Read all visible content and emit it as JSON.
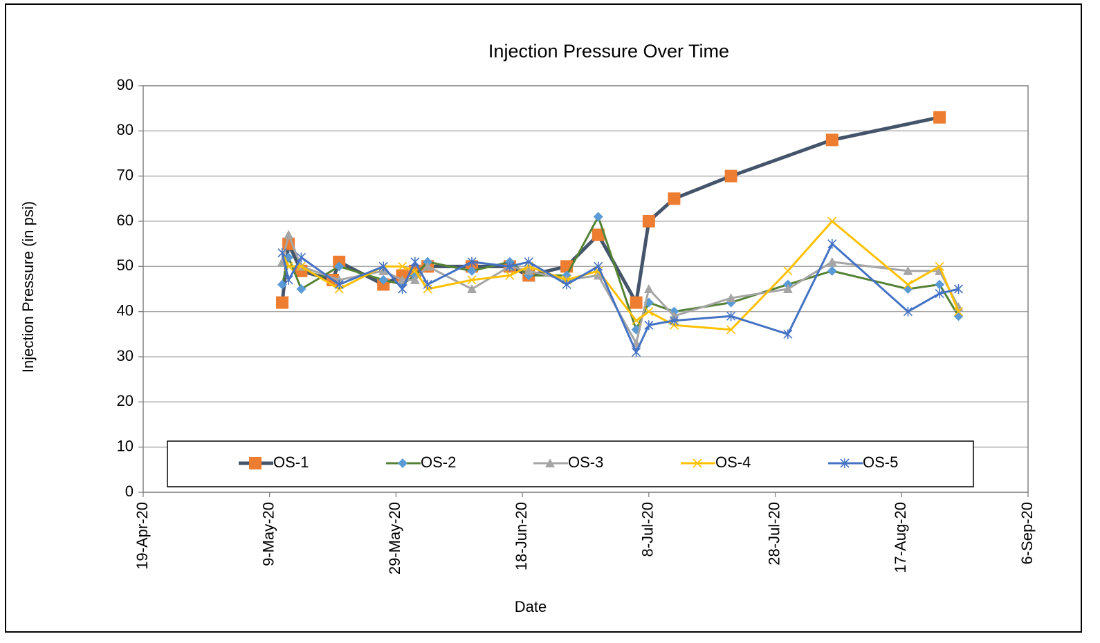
{
  "chart_data": {
    "type": "line",
    "title": "Injection Pressure Over Time",
    "x_label": "Date",
    "y_label": "Injection Pressure (in psi)",
    "xlim": [
      "2020-04-19",
      "2020-09-06"
    ],
    "xticks": [
      {
        "value": "2020-04-19",
        "label": "19-Apr-20"
      },
      {
        "value": "2020-05-09",
        "label": "9-May-20"
      },
      {
        "value": "2020-05-29",
        "label": "29-May-20"
      },
      {
        "value": "2020-06-18",
        "label": "18-Jun-20"
      },
      {
        "value": "2020-07-08",
        "label": "8-Jul-20"
      },
      {
        "value": "2020-07-28",
        "label": "28-Jul-20"
      },
      {
        "value": "2020-08-17",
        "label": "17-Aug-20"
      },
      {
        "value": "2020-09-06",
        "label": "6-Sep-20"
      }
    ],
    "ylim": [
      0,
      90
    ],
    "yticks": [
      0,
      10,
      20,
      30,
      40,
      50,
      60,
      70,
      80,
      90
    ],
    "grid": true,
    "legend": "bottom",
    "series": [
      {
        "name": "OS-1",
        "color": "#44546A",
        "marker_color": "#ED7D31",
        "marker": "square",
        "x": [
          "2020-05-11",
          "2020-05-12",
          "2020-05-14",
          "2020-05-19",
          "2020-05-20",
          "2020-05-27",
          "2020-05-30",
          "2020-06-01",
          "2020-06-03",
          "2020-06-10",
          "2020-06-16",
          "2020-06-19",
          "2020-06-25",
          "2020-06-30",
          "2020-07-06",
          "2020-07-08",
          "2020-07-12",
          "2020-07-21",
          "2020-08-06",
          "2020-08-23"
        ],
        "values": [
          42,
          55,
          49,
          47,
          51,
          46,
          48,
          49,
          50,
          50,
          50,
          48,
          50,
          57,
          42,
          60,
          65,
          70,
          78,
          83
        ]
      },
      {
        "name": "OS-2",
        "color": "#548235",
        "marker_color": "#5B9BD5",
        "marker": "diamond",
        "x": [
          "2020-05-11",
          "2020-05-12",
          "2020-05-14",
          "2020-05-20",
          "2020-05-27",
          "2020-05-30",
          "2020-06-01",
          "2020-06-03",
          "2020-06-10",
          "2020-06-16",
          "2020-06-19",
          "2020-06-25",
          "2020-06-30",
          "2020-07-06",
          "2020-07-08",
          "2020-07-12",
          "2020-07-21",
          "2020-07-30",
          "2020-08-06",
          "2020-08-18",
          "2020-08-23",
          "2020-08-26"
        ],
        "values": [
          46,
          52,
          45,
          50,
          47,
          46,
          48,
          51,
          49,
          51,
          48,
          48,
          61,
          36,
          42,
          40,
          42,
          46,
          49,
          45,
          46,
          39
        ]
      },
      {
        "name": "OS-3",
        "color": "#A5A5A5",
        "marker_color": "#A5A5A5",
        "marker": "triangle",
        "x": [
          "2020-05-11",
          "2020-05-12",
          "2020-05-14",
          "2020-05-20",
          "2020-05-27",
          "2020-05-30",
          "2020-06-01",
          "2020-06-03",
          "2020-06-10",
          "2020-06-16",
          "2020-06-19",
          "2020-06-25",
          "2020-06-30",
          "2020-07-06",
          "2020-07-08",
          "2020-07-12",
          "2020-07-21",
          "2020-07-30",
          "2020-08-06",
          "2020-08-18",
          "2020-08-23",
          "2020-08-26"
        ],
        "values": [
          51,
          57,
          50,
          47,
          49,
          47,
          47,
          50,
          45,
          50,
          49,
          47,
          48,
          33,
          45,
          39,
          43,
          45,
          51,
          49,
          49,
          41
        ]
      },
      {
        "name": "OS-4",
        "color": "#FFC000",
        "marker_color": "#FFC000",
        "marker": "x",
        "x": [
          "2020-05-11",
          "2020-05-12",
          "2020-05-14",
          "2020-05-20",
          "2020-05-27",
          "2020-05-30",
          "2020-06-01",
          "2020-06-03",
          "2020-06-10",
          "2020-06-16",
          "2020-06-19",
          "2020-06-25",
          "2020-06-30",
          "2020-07-06",
          "2020-07-08",
          "2020-07-12",
          "2020-07-21",
          "2020-07-30",
          "2020-08-06",
          "2020-08-18",
          "2020-08-23",
          "2020-08-26"
        ],
        "values": [
          53,
          50,
          50,
          45,
          50,
          50,
          49,
          45,
          47,
          48,
          50,
          47,
          49,
          38,
          40,
          37,
          36,
          49,
          60,
          46,
          50,
          40
        ]
      },
      {
        "name": "OS-5",
        "color": "#4472C4",
        "marker_color": "#4472C4",
        "marker": "star",
        "x": [
          "2020-05-11",
          "2020-05-12",
          "2020-05-14",
          "2020-05-20",
          "2020-05-27",
          "2020-05-30",
          "2020-06-01",
          "2020-06-03",
          "2020-06-10",
          "2020-06-16",
          "2020-06-19",
          "2020-06-25",
          "2020-06-30",
          "2020-07-06",
          "2020-07-08",
          "2020-07-12",
          "2020-07-21",
          "2020-07-30",
          "2020-08-06",
          "2020-08-18",
          "2020-08-23",
          "2020-08-26"
        ],
        "values": [
          53,
          47,
          52,
          46,
          50,
          45,
          51,
          46,
          51,
          50,
          51,
          46,
          50,
          31,
          37,
          38,
          39,
          35,
          55,
          40,
          44,
          45
        ]
      }
    ]
  }
}
